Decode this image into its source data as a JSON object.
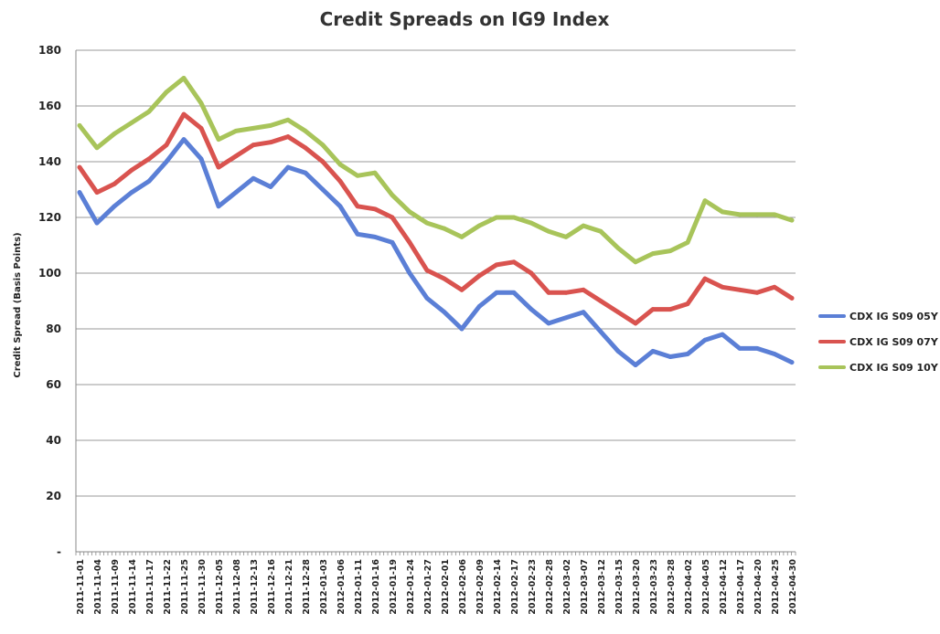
{
  "chart_data": {
    "type": "line",
    "title": "Credit Spreads on IG9 Index",
    "ylabel": "Credit Spread (Basis Points)",
    "xlabel": "",
    "ylim": [
      0,
      180
    ],
    "yticks": [
      0,
      20,
      40,
      60,
      80,
      100,
      120,
      140,
      160,
      180
    ],
    "ytick_labels": [
      "-",
      "20",
      "40",
      "60",
      "80",
      "100",
      "120",
      "140",
      "160",
      "180"
    ],
    "grid": "horizontal",
    "legend_position": "right",
    "x_tick_labels": [
      "2011-11-01",
      "2011-11-04",
      "2011-11-09",
      "2011-11-14",
      "2011-11-17",
      "2011-11-22",
      "2011-11-25",
      "2011-11-30",
      "2011-12-05",
      "2011-12-08",
      "2011-12-13",
      "2011-12-16",
      "2011-12-21",
      "2011-12-28",
      "2012-01-03",
      "2012-01-06",
      "2012-01-11",
      "2012-01-16",
      "2012-01-19",
      "2012-01-24",
      "2012-01-27",
      "2012-02-01",
      "2012-02-06",
      "2012-02-09",
      "2012-02-14",
      "2012-02-17",
      "2012-02-23",
      "2012-02-28",
      "2012-03-02",
      "2012-03-07",
      "2012-03-12",
      "2012-03-15",
      "2012-03-20",
      "2012-03-23",
      "2012-03-28",
      "2012-04-02",
      "2012-04-05",
      "2012-04-12",
      "2012-04-17",
      "2012-04-20",
      "2012-04-25",
      "2012-04-30"
    ],
    "x_dates": [
      "2011-11-01",
      "2011-11-04",
      "2011-11-09",
      "2011-11-14",
      "2011-11-17",
      "2011-11-22",
      "2011-11-25",
      "2011-11-30",
      "2011-12-05",
      "2011-12-08",
      "2011-12-13",
      "2011-12-16",
      "2011-12-21",
      "2011-12-28",
      "2012-01-03",
      "2012-01-06",
      "2012-01-11",
      "2012-01-16",
      "2012-01-19",
      "2012-01-24",
      "2012-01-27",
      "2012-02-01",
      "2012-02-06",
      "2012-02-09",
      "2012-02-14",
      "2012-02-17",
      "2012-02-23",
      "2012-02-28",
      "2012-03-02",
      "2012-03-07",
      "2012-03-12",
      "2012-03-15",
      "2012-03-20",
      "2012-03-23",
      "2012-03-28",
      "2012-04-02",
      "2012-04-05",
      "2012-04-12",
      "2012-04-17",
      "2012-04-20",
      "2012-04-25",
      "2012-04-30"
    ],
    "series": [
      {
        "name": "CDX IG S09 05Y",
        "color": "#5b7fd6",
        "values": [
          129,
          118,
          124,
          129,
          133,
          140,
          148,
          141,
          124,
          129,
          134,
          131,
          138,
          136,
          130,
          124,
          114,
          113,
          111,
          100,
          91,
          86,
          80,
          88,
          93,
          93,
          87,
          82,
          84,
          86,
          79,
          72,
          67,
          72,
          70,
          71,
          76,
          78,
          73,
          73,
          71,
          68
        ]
      },
      {
        "name": "CDX IG S09 07Y",
        "color": "#d9534f",
        "values": [
          138,
          129,
          132,
          137,
          141,
          146,
          157,
          152,
          138,
          142,
          146,
          147,
          149,
          145,
          140,
          133,
          124,
          123,
          120,
          111,
          101,
          98,
          94,
          99,
          103,
          104,
          100,
          93,
          93,
          94,
          90,
          86,
          82,
          87,
          87,
          89,
          98,
          95,
          94,
          93,
          95,
          91
        ]
      },
      {
        "name": "CDX IG S09 10Y",
        "color": "#a8c45a",
        "values": [
          153,
          145,
          150,
          154,
          158,
          165,
          170,
          161,
          148,
          151,
          152,
          153,
          155,
          151,
          146,
          139,
          135,
          136,
          128,
          122,
          118,
          116,
          113,
          117,
          120,
          120,
          118,
          115,
          113,
          117,
          115,
          109,
          104,
          107,
          108,
          111,
          126,
          122,
          121,
          121,
          121,
          119
        ]
      }
    ]
  }
}
